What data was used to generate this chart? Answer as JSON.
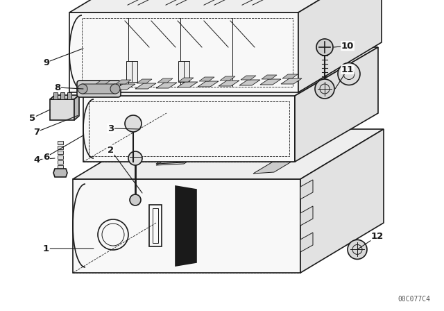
{
  "bg_color": "#ffffff",
  "line_color": "#1a1a1a",
  "watermark": "00C077C4",
  "figsize": [
    6.4,
    4.48
  ],
  "dpi": 100,
  "lw_main": 1.2,
  "lw_thin": 0.7,
  "lw_dash": 0.6,
  "box_face": "#f8f8f8",
  "box_top": "#eeeeee",
  "box_right": "#e2e2e2"
}
